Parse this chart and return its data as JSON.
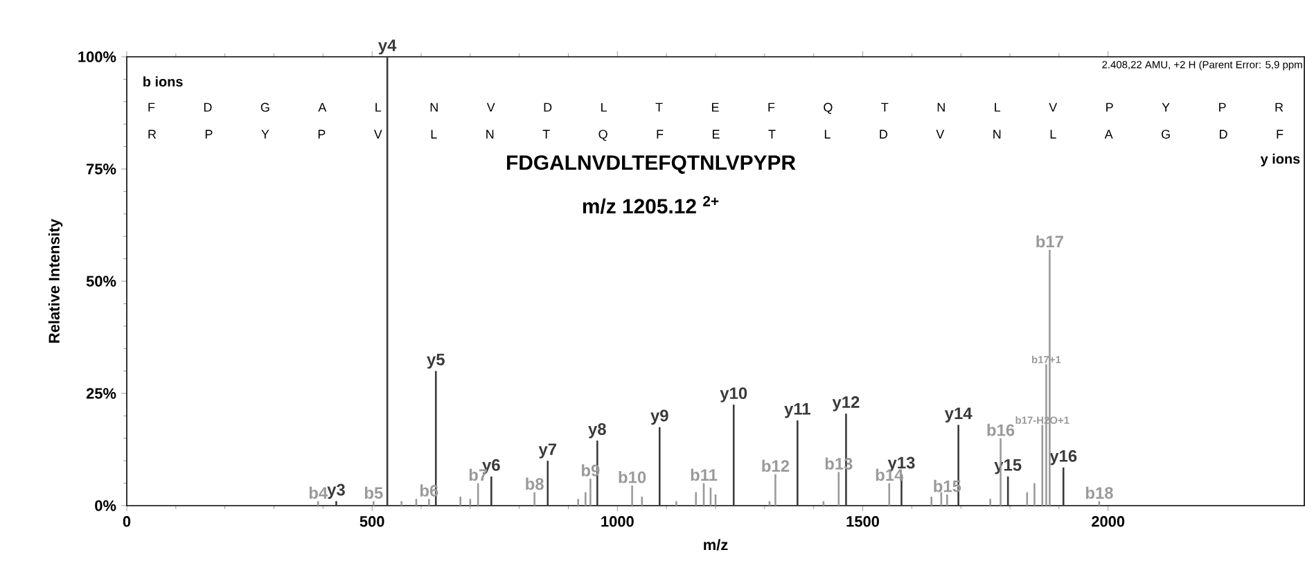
{
  "chart_data": {
    "type": "bar",
    "title": "FDGALNVDLTEFQTNLVPYPR",
    "subtitle": "m/z 1205.12 $^{2+}$",
    "xlabel": "m/z",
    "ylabel": "Relative Intensity",
    "xlim": [
      0,
      2400
    ],
    "ylim": [
      0,
      100
    ],
    "xticks": [
      0,
      500,
      1000,
      1500,
      2000
    ],
    "yticks": [
      {
        "value": 0,
        "label": "0%"
      },
      {
        "value": 25,
        "label": "25%"
      },
      {
        "value": 50,
        "label": "50%"
      },
      {
        "value": 75,
        "label": "75%"
      },
      {
        "value": 100,
        "label": "100%"
      }
    ],
    "annotations": [
      "b ions",
      "F D G A L N V D L T E F Q T N L V P Y P R",
      "R P Y P V L N T Q F E T L D V N L A G D F",
      "y ions",
      "2.408,22 AMU, +2 H (Parent Error: 5,9 ppm"
    ],
    "series": [
      {
        "color": "#3a3a3a",
        "x": [
          427,
          531,
          630,
          743,
          858,
          959,
          1086,
          1237,
          1367,
          1466,
          1579,
          1695,
          1796,
          1909
        ],
        "values": [
          1,
          100,
          30,
          6.5,
          10,
          14.5,
          17.5,
          22.5,
          19,
          20.5,
          7,
          18,
          6.5,
          8.5
        ],
        "value_labels": [
          "y3",
          "y4",
          "y5",
          "y6",
          "y7",
          "y8",
          "y9",
          "y10",
          "y11",
          "y12",
          "y13",
          "y14",
          "y15",
          "y16"
        ]
      },
      {
        "color": "#9a9a9a",
        "x": [
          390,
          503,
          560,
          590,
          616,
          680,
          700,
          716,
          831,
          920,
          935,
          945,
          1030,
          1050,
          1120,
          1160,
          1176,
          1190,
          1200,
          1310,
          1322,
          1420,
          1451,
          1554,
          1640,
          1660,
          1672,
          1760,
          1781,
          1835,
          1850,
          1866,
          1874,
          1881,
          1982
        ],
        "values": [
          1,
          1,
          1,
          1.5,
          1.5,
          2,
          1.5,
          5,
          3,
          1.5,
          3,
          6,
          4.5,
          2,
          1,
          3,
          5,
          4,
          2.5,
          1,
          7,
          1,
          7.5,
          5,
          2,
          3,
          2.5,
          1.5,
          15,
          3,
          5,
          18,
          31.5,
          57,
          1
        ],
        "value_labels": [
          "b4",
          "b5",
          null,
          null,
          "b6",
          null,
          null,
          "b7",
          "b8",
          null,
          null,
          "b9",
          "b10",
          null,
          null,
          null,
          "b11",
          null,
          null,
          null,
          "b12",
          null,
          "b13",
          "b14",
          null,
          null,
          "b15",
          null,
          "b16",
          null,
          null,
          "b17-H2O+1",
          "b17+1",
          "b17",
          "b18"
        ]
      }
    ]
  }
}
